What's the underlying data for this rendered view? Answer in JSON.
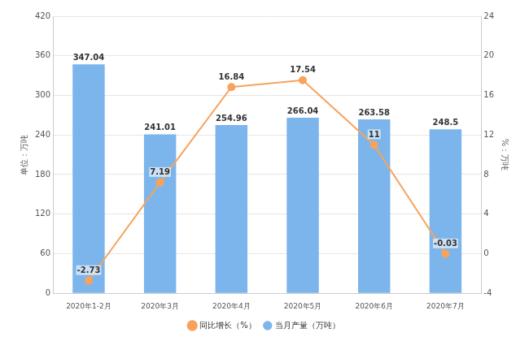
{
  "chart_data": {
    "type": "bar",
    "categories": [
      "2020年1-2月",
      "2020年3月",
      "2020年4月",
      "2020年5月",
      "2020年6月",
      "2020年7月"
    ],
    "series": [
      {
        "name": "当月产量（万吨）",
        "type": "bar",
        "color": "#7cb5ec",
        "values": [
          347.04,
          241.01,
          254.96,
          266.04,
          263.58,
          248.5
        ]
      },
      {
        "name": "同比增长（%）",
        "type": "line",
        "axis": "y2",
        "color": "#f7a35c",
        "marker": "circle",
        "values": [
          -2.73,
          7.19,
          16.84,
          17.54,
          11,
          -0.03
        ]
      }
    ],
    "y_label": "单位：万吨",
    "y2_label": "%：万吨",
    "ylim": [
      0,
      420
    ],
    "yticks": [
      0,
      60,
      120,
      180,
      240,
      300,
      360,
      420
    ],
    "y2lim": [
      -4,
      24
    ],
    "y2ticks": [
      -4,
      0,
      4,
      8,
      12,
      16,
      20,
      24
    ],
    "grid": true,
    "legend": "bottom",
    "data_labels": true
  }
}
